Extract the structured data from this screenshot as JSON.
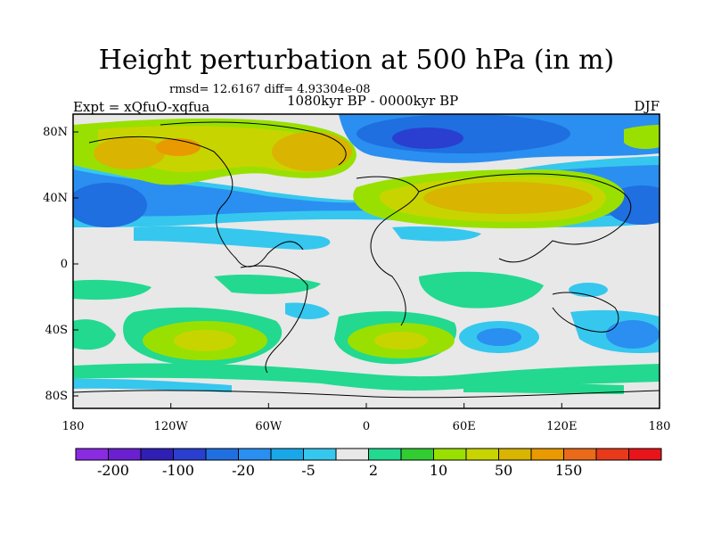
{
  "title": "Height perturbation at 500 hPa (in m)",
  "stats": "rmsd= 12.6167 diff= 4.93304e-08",
  "experiment": "Expt = xQfuO-xqfua",
  "period": "1080kyr BP - 0000kyr BP",
  "season": "DJF",
  "x_ticks": [
    "180",
    "120W",
    "60W",
    "0",
    "60E",
    "120E",
    "180"
  ],
  "y_ticks": [
    "80N",
    "40N",
    "0",
    "40S",
    "80S"
  ],
  "colorbar": {
    "colors": [
      "#8a2be2",
      "#6a1fd1",
      "#2f1fb5",
      "#2a3fcf",
      "#1f6fe0",
      "#2a8ff0",
      "#1aa7e8",
      "#36c7ee",
      "#e8e8e8",
      "#22d98f",
      "#33cc33",
      "#99e000",
      "#c8d400",
      "#d9b400",
      "#e89a00",
      "#e86a1a",
      "#e83a1a",
      "#e8141a"
    ],
    "labels": [
      "-200",
      "-100",
      "-20",
      "-5",
      "2",
      "10",
      "50",
      "150"
    ]
  },
  "map_data": {
    "projection": "cylindrical equidistant",
    "lon_range": [
      -180,
      180
    ],
    "lat_range": [
      -90,
      90
    ],
    "description": "filled contours of 500 hPa geopotential height perturbation"
  }
}
